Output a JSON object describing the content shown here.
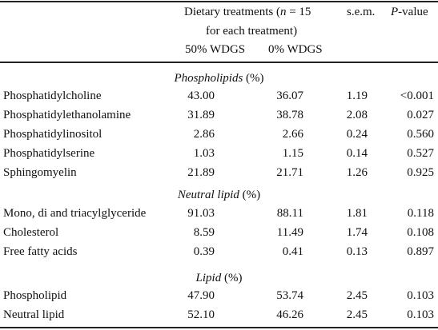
{
  "header": {
    "treatments_line1": "Dietary treatments (",
    "treatments_n": "n",
    "treatments_eq": " = 15",
    "treatments_line2": "for each treatment)",
    "col_50": "50% WDGS",
    "col_0": "0% WDGS",
    "sem": "s.e.m.",
    "pvalue_p": "P",
    "pvalue_rest": "-value"
  },
  "sections": [
    {
      "title": "Phospholipids",
      "unit": " (%)",
      "rows": [
        {
          "label": "Phosphatidylcholine",
          "v50": "43.00",
          "v0": "36.07",
          "sem": "1.19",
          "p": "<0.001"
        },
        {
          "label": "Phosphatidylethanolamine",
          "v50": "31.89",
          "v0": "38.78",
          "sem": "2.08",
          "p": "0.027"
        },
        {
          "label": "Phosphatidylinositol",
          "v50": "2.86",
          "v0": "2.66",
          "sem": "0.24",
          "p": "0.560"
        },
        {
          "label": "Phosphatidylserine",
          "v50": "1.03",
          "v0": "1.15",
          "sem": "0.14",
          "p": "0.527"
        },
        {
          "label": "Sphingomyelin",
          "v50": "21.89",
          "v0": "21.71",
          "sem": "1.26",
          "p": "0.925"
        }
      ]
    },
    {
      "title": "Neutral lipid",
      "unit": " (%)",
      "rows": [
        {
          "label": "Mono, di and triacylglyceride",
          "v50": "91.03",
          "v0": "88.11",
          "sem": "1.81",
          "p": "0.118"
        },
        {
          "label": "Cholesterol",
          "v50": "8.59",
          "v0": "11.49",
          "sem": "1.74",
          "p": "0.108"
        },
        {
          "label": "Free fatty acids",
          "v50": "0.39",
          "v0": "0.41",
          "sem": "0.13",
          "p": "0.897"
        }
      ]
    },
    {
      "title": "Lipid",
      "unit": " (%)",
      "rows": [
        {
          "label": "Phospholipid",
          "v50": "47.90",
          "v0": "53.74",
          "sem": "2.45",
          "p": "0.103"
        },
        {
          "label": "Neutral lipid",
          "v50": "52.10",
          "v0": "46.26",
          "sem": "2.45",
          "p": "0.103"
        }
      ]
    }
  ]
}
